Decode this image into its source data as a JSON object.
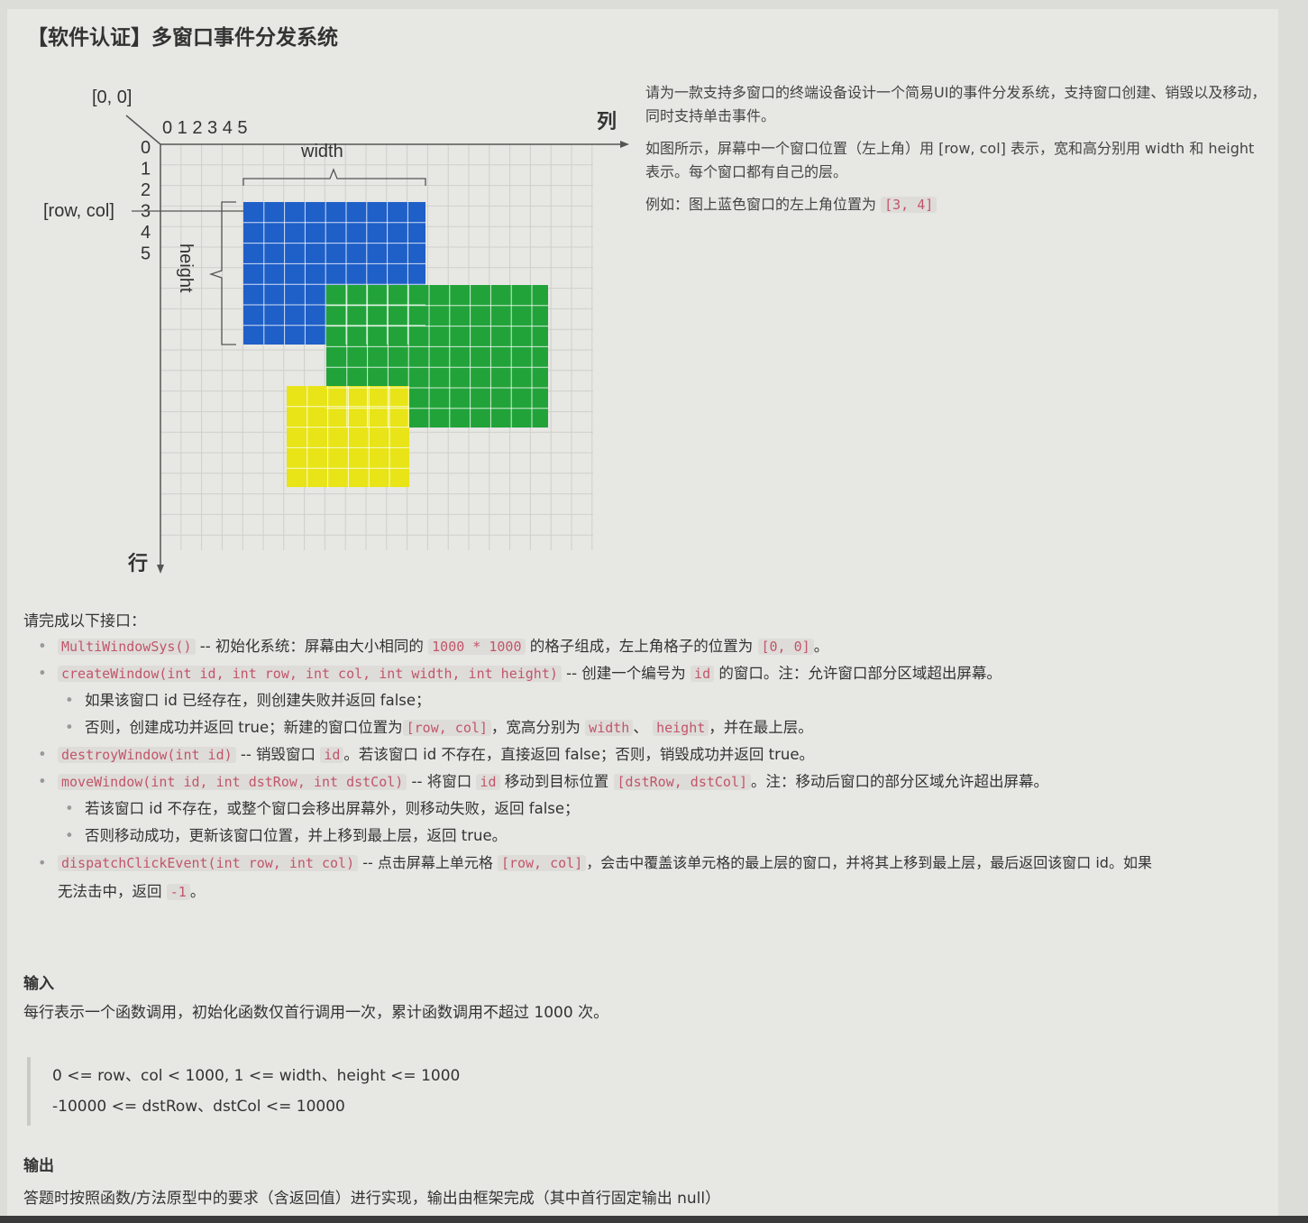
{
  "title": "【软件认证】多窗口事件分发系统",
  "figure": {
    "origin_label": "[0, 0]",
    "col_numbers": "0 1 2 3 4 5",
    "row_numbers": [
      "0",
      "1",
      "2",
      "3",
      "4",
      "5"
    ],
    "col_axis_label": "列",
    "row_axis_label": "行",
    "width_label": "width",
    "height_label": "height",
    "rowcol_label": "[row, col]",
    "colors": {
      "blue": "#1f5fc8",
      "green": "#22a33a",
      "yellow": "#e8e417",
      "grid": "#cfcfcb"
    }
  },
  "intro": {
    "p1": "请为一款支持多窗口的终端设备设计一个简易UI的事件分发系统，支持窗口创建、销毁以及移动，同时支持单击事件。",
    "p2": "如图所示，屏幕中一个窗口位置（左上角）用 [row, col] 表示，宽和高分别用 width 和 height 表示。每个窗口都有自己的层。",
    "p3_text": "例如：图上蓝色窗口的左上角位置为",
    "p3_code": "[3, 4]"
  },
  "interface_label": "请完成以下接口：",
  "api": {
    "init_code": "MultiWindowSys()",
    "init_text1": "-- 初始化系统：屏幕由大小相同的",
    "init_code2": "1000 * 1000",
    "init_text2": "的格子组成，左上角格子的位置为",
    "init_code3": "[0, 0]",
    "init_text3": "。",
    "create_code": "createWindow(int id, int row, int col, int width, int height)",
    "create_text1": "-- 创建一个编号为",
    "create_code2": "id",
    "create_text2": "的窗口。注：允许窗口部分区域超出屏幕。",
    "create_sub1": "如果该窗口 id 已经存在，则创建失败并返回 false；",
    "create_sub2_text1": "否则，创建成功并返回 true；新建的窗口位置为",
    "create_sub2_code1": "[row, col]",
    "create_sub2_text2": "，宽高分别为",
    "create_sub2_code2": "width",
    "create_sub2_text3": "、",
    "create_sub2_code3": "height",
    "create_sub2_text4": "，并在最上层。",
    "destroy_code": "destroyWindow(int id)",
    "destroy_text1": "-- 销毁窗口",
    "destroy_code2": "id",
    "destroy_text2": "。若该窗口 id 不存在，直接返回 false；否则，销毁成功并返回 true。",
    "move_code": "moveWindow(int id, int dstRow, int dstCol)",
    "move_text1": "-- 将窗口",
    "move_code2": "id",
    "move_text2": "移动到目标位置",
    "move_code3": "[dstRow, dstCol]",
    "move_text3": "。注：移动后窗口的部分区域允许超出屏幕。",
    "move_sub1": "若该窗口 id 不存在，或整个窗口会移出屏幕外，则移动失败，返回 false；",
    "move_sub2": "否则移动成功，更新该窗口位置，并上移到最上层，返回 true。",
    "click_code": "dispatchClickEvent(int row, int col)",
    "click_text1": "-- 点击屏幕上单元格",
    "click_code2": "[row, col]",
    "click_text2": "，会击中覆盖该单元格的最上层的窗口，并将其上移到最上层，最后返回该窗口 id。如果",
    "click_cont_text": "无法击中，返回",
    "click_cont_code": "-1",
    "click_cont_end": "。"
  },
  "input_label": "输入",
  "input_text": "每行表示一个函数调用，初始化函数仅首行调用一次，累计函数调用不超过 1000 次。",
  "constraints": [
    "0 <= row、col < 1000, 1 <= width、height <= 1000",
    "-10000 <= dstRow、dstCol <= 10000"
  ],
  "output_label": "输出",
  "output_text": "答题时按照函数/方法原型中的要求（含返回值）进行实现，输出由框架完成（其中首行固定输出 null）"
}
